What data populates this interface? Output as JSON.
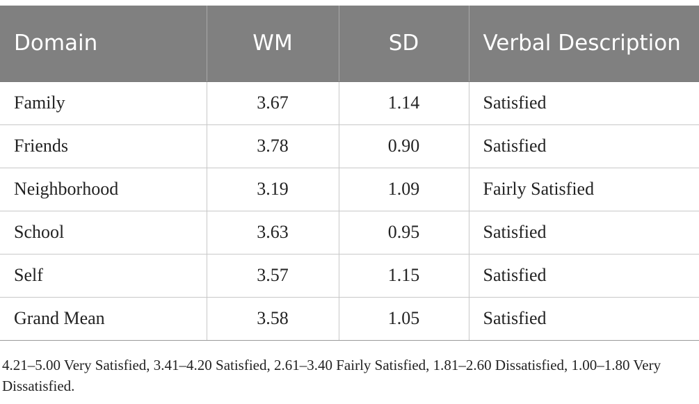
{
  "table": {
    "headers": [
      "Domain",
      "WM",
      "SD",
      "Verbal Description"
    ],
    "rows": [
      [
        "Family",
        "3.67",
        "1.14",
        "Satisfied"
      ],
      [
        "Friends",
        "3.78",
        "0.90",
        "Satisfied"
      ],
      [
        "Neighborhood",
        "3.19",
        "1.09",
        "Fairly Satisfied"
      ],
      [
        "School",
        "3.63",
        "0.95",
        "Satisfied"
      ],
      [
        "Self",
        "3.57",
        "1.15",
        "Satisfied"
      ],
      [
        "Grand Mean",
        "3.58",
        "1.05",
        "Satisfied"
      ]
    ]
  },
  "footnote": "4.21–5.00 Very Satisfied, 3.41–4.20 Satisfied, 2.61–3.40 Fairly Satisfied, 1.81–2.60 Dissatisfied, 1.00–1.80 Very Dissatisfied.",
  "colors": {
    "header_bg": "#808080",
    "header_text": "#ffffff",
    "grid": "#c8c8c8"
  }
}
